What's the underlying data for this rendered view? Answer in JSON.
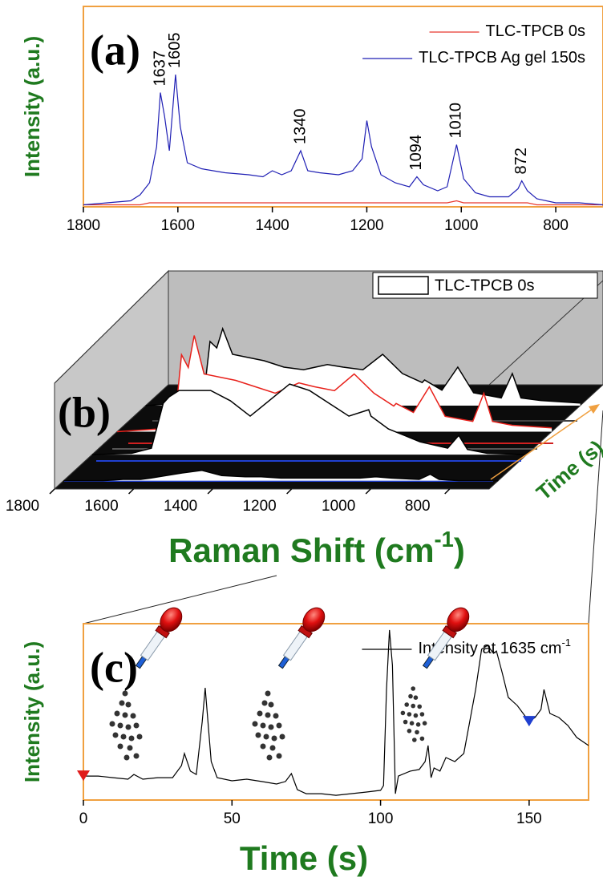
{
  "chart_data": [
    {
      "type": "line",
      "panel_label": "(a)",
      "y_label": "Intensity (a.u.)",
      "x": [
        1800,
        1750,
        1700,
        1680,
        1660,
        1645,
        1637,
        1628,
        1618,
        1605,
        1595,
        1580,
        1550,
        1500,
        1450,
        1420,
        1400,
        1380,
        1360,
        1340,
        1325,
        1300,
        1260,
        1230,
        1210,
        1200,
        1190,
        1170,
        1140,
        1110,
        1094,
        1080,
        1050,
        1030,
        1010,
        995,
        970,
        940,
        900,
        880,
        872,
        860,
        840,
        800,
        750,
        700
      ],
      "series": [
        {
          "name": "TLC-TPCB 0s",
          "color": "#e8382e",
          "values": [
            1,
            1,
            1,
            1,
            2,
            2,
            2,
            2,
            2,
            2,
            2,
            2,
            2,
            2,
            2,
            2,
            2,
            2,
            2,
            2,
            2,
            2,
            2,
            2,
            2,
            2,
            2,
            2,
            2,
            2,
            2,
            2,
            2,
            2,
            3,
            2,
            2,
            2,
            2,
            2,
            2,
            2,
            1,
            1,
            1,
            1
          ]
        },
        {
          "name": "TLC-TPCB Ag gel 150s",
          "color": "#1f1fb4",
          "values": [
            1,
            2,
            3,
            6,
            12,
            30,
            57,
            45,
            28,
            66,
            40,
            22,
            19,
            17,
            16,
            15,
            18,
            16,
            18,
            28,
            18,
            17,
            16,
            18,
            24,
            43,
            30,
            16,
            12,
            10,
            15,
            11,
            8,
            10,
            31,
            14,
            7,
            5,
            5,
            9,
            13,
            8,
            4,
            2,
            2,
            1
          ]
        }
      ],
      "xlim": [
        1800,
        700
      ],
      "xticks": [
        1800,
        1600,
        1400,
        1200,
        1000,
        800
      ],
      "ylim": [
        0,
        100
      ],
      "peak_labels": [
        1637,
        1605,
        1340,
        1094,
        1010,
        872
      ],
      "legend": "upper right",
      "frame_color": "#f0a040"
    },
    {
      "type": "waterfall",
      "panel_label": "(b)",
      "x_label": {
        "text": "Raman Shift (cm",
        "sup": "-1",
        "end": ")"
      },
      "depth_label": "Time (s)",
      "x": [
        1800,
        1700,
        1650,
        1637,
        1620,
        1605,
        1580,
        1500,
        1450,
        1400,
        1340,
        1300,
        1250,
        1200,
        1150,
        1100,
        1094,
        1050,
        1010,
        970,
        900,
        872,
        850,
        800,
        700
      ],
      "series": [
        {
          "name": "TLC-TPCB 0s",
          "color": "#000000",
          "values": [
            0,
            0,
            1,
            1,
            1,
            1,
            2,
            6,
            8,
            4,
            3,
            3,
            2,
            2,
            2,
            2,
            2,
            2,
            3,
            2,
            1,
            5,
            1,
            0,
            0
          ]
        },
        {
          "color": "#000000",
          "values": [
            0,
            1,
            5,
            20,
            40,
            45,
            50,
            50,
            42,
            30,
            45,
            55,
            50,
            40,
            30,
            35,
            30,
            20,
            15,
            10,
            5,
            15,
            4,
            1,
            0
          ]
        },
        {
          "color": "#e8201a",
          "values": [
            0,
            2,
            20,
            60,
            50,
            75,
            45,
            40,
            35,
            30,
            38,
            35,
            32,
            45,
            30,
            20,
            22,
            15,
            35,
            12,
            8,
            30,
            8,
            5,
            3
          ]
        },
        {
          "color": "#000000",
          "values": [
            0,
            2,
            15,
            50,
            45,
            60,
            40,
            35,
            30,
            28,
            32,
            30,
            28,
            40,
            25,
            18,
            20,
            12,
            30,
            10,
            6,
            25,
            6,
            4,
            2
          ]
        }
      ],
      "xlim": [
        1800,
        700
      ],
      "xticks": [
        1800,
        1600,
        1400,
        1200,
        1000,
        800
      ],
      "ylim": [
        0,
        100
      ],
      "legend": "upper right",
      "depth_color": "#f0a040"
    },
    {
      "type": "line",
      "panel_label": "(c)",
      "y_label": "Intensity (a.u.)",
      "x_label": "Time (s)",
      "x": [
        0,
        5,
        10,
        15,
        17,
        20,
        25,
        30,
        33,
        34,
        36,
        38,
        40,
        41,
        43,
        45,
        50,
        55,
        60,
        65,
        68,
        70,
        72,
        75,
        80,
        85,
        90,
        95,
        100,
        101,
        102,
        103,
        104,
        105,
        106,
        110,
        113,
        115,
        116,
        117,
        118,
        120,
        122,
        125,
        128,
        130,
        132,
        134,
        136,
        138,
        139,
        141,
        143,
        146,
        150,
        152,
        154,
        155,
        157,
        160,
        163,
        166,
        170
      ],
      "series": [
        {
          "name": "Intensity at 1635 cm",
          "name_sup": "-1",
          "color": "#000000",
          "values": [
            13.6,
            13.6,
            12.7,
            11.8,
            14.5,
            11.8,
            12.7,
            12.7,
            19.5,
            26.4,
            16.4,
            14.5,
            44.5,
            63.6,
            21.8,
            12.7,
            10.9,
            11.8,
            10.5,
            9.1,
            10.5,
            15,
            5.9,
            3.6,
            3.6,
            2.7,
            3.6,
            4.5,
            5.5,
            8.2,
            62.7,
            96.4,
            76.4,
            3.6,
            13.6,
            16.4,
            17.3,
            21.8,
            30.9,
            12.7,
            18.2,
            16.4,
            24.1,
            21.8,
            26.4,
            44.5,
            62.7,
            85.5,
            87.7,
            83.2,
            84.5,
            71.8,
            58.2,
            53.6,
            44.5,
            46.8,
            51.4,
            62.7,
            49.1,
            46.8,
            42.3,
            35.5,
            30.9
          ]
        }
      ],
      "markers": [
        {
          "x": 0,
          "y": 13.6,
          "color": "#e01b1b"
        },
        {
          "x": 150,
          "y": 44.5,
          "color": "#1f3fd0"
        }
      ],
      "xlim": [
        0,
        170
      ],
      "xticks": [
        0,
        50,
        100,
        150
      ],
      "ylim": [
        0,
        100
      ],
      "legend": "upper right",
      "frame_color": "#f0a040"
    }
  ]
}
